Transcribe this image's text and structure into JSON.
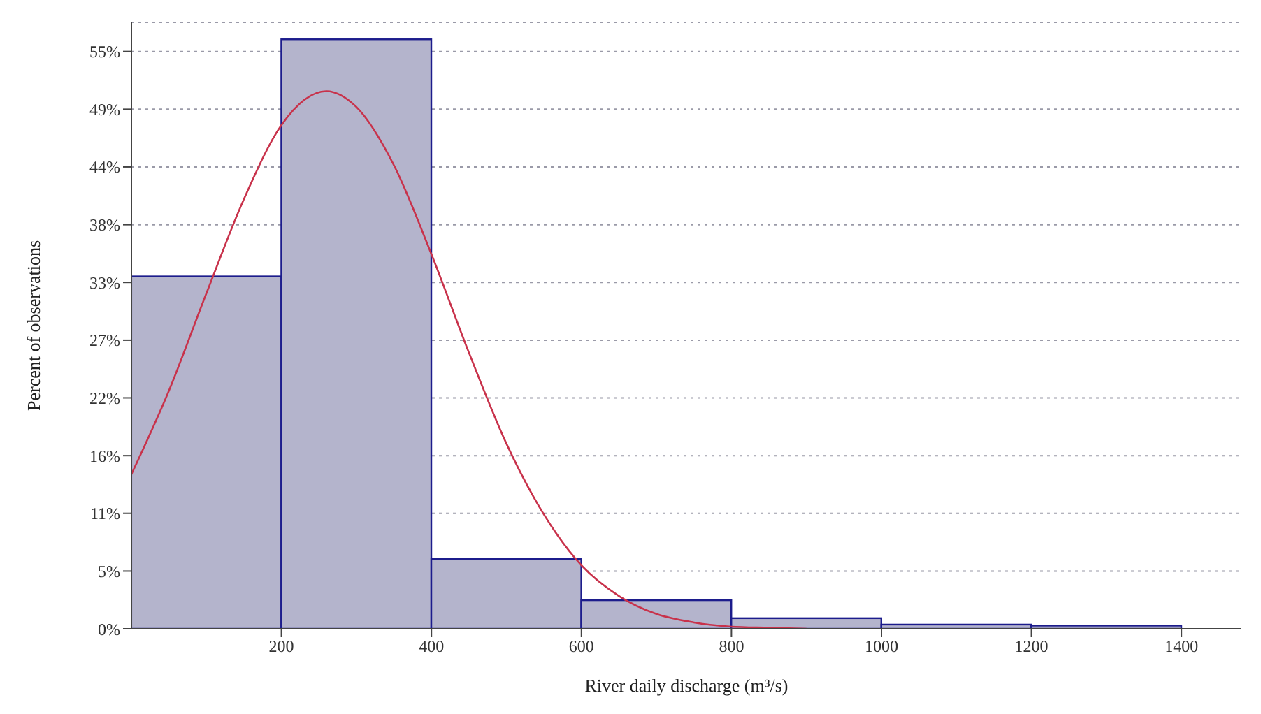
{
  "chart_data": {
    "type": "histogram",
    "xlabel": "River daily discharge (m³/s)",
    "ylabel": "Percent of observations",
    "bins": [
      0,
      200,
      400,
      600,
      800,
      1000,
      1200,
      1400
    ],
    "values": [
      33.3,
      55.7,
      6.6,
      2.7,
      1.0,
      0.4,
      0.3
    ],
    "color": "#b4b4cc",
    "series": [
      {
        "type": "line",
        "color": "#c8324b",
        "x": [
          0,
          50,
          100,
          150,
          200,
          260,
          300,
          350,
          400,
          450,
          500,
          550,
          600,
          650,
          700,
          750,
          800,
          850,
          900
        ],
        "values": [
          14.6,
          22.5,
          31.7,
          40.6,
          47.6,
          50.8,
          49.3,
          43.8,
          35.4,
          26.1,
          17.5,
          10.8,
          6.0,
          3.1,
          1.4,
          0.6,
          0.2,
          0.1,
          0
        ]
      }
    ],
    "xlim": [
      0,
      1480
    ],
    "xticks": [
      200,
      400,
      600,
      800,
      1000,
      1200,
      1400
    ],
    "ylim": [
      0,
      57.3
    ],
    "yticks": [
      {
        "value": 0,
        "label": "0%"
      },
      {
        "value": 5.45,
        "label": "5%"
      },
      {
        "value": 10.91,
        "label": "11%"
      },
      {
        "value": 16.36,
        "label": "16%"
      },
      {
        "value": 21.82,
        "label": "22%"
      },
      {
        "value": 27.27,
        "label": "27%"
      },
      {
        "value": 32.73,
        "label": "33%"
      },
      {
        "value": 38.18,
        "label": "38%"
      },
      {
        "value": 43.64,
        "label": "44%"
      },
      {
        "value": 49.09,
        "label": "49%"
      },
      {
        "value": 54.55,
        "label": "55%"
      }
    ],
    "grid": "y",
    "marker": "none",
    "line_style": "solid"
  }
}
